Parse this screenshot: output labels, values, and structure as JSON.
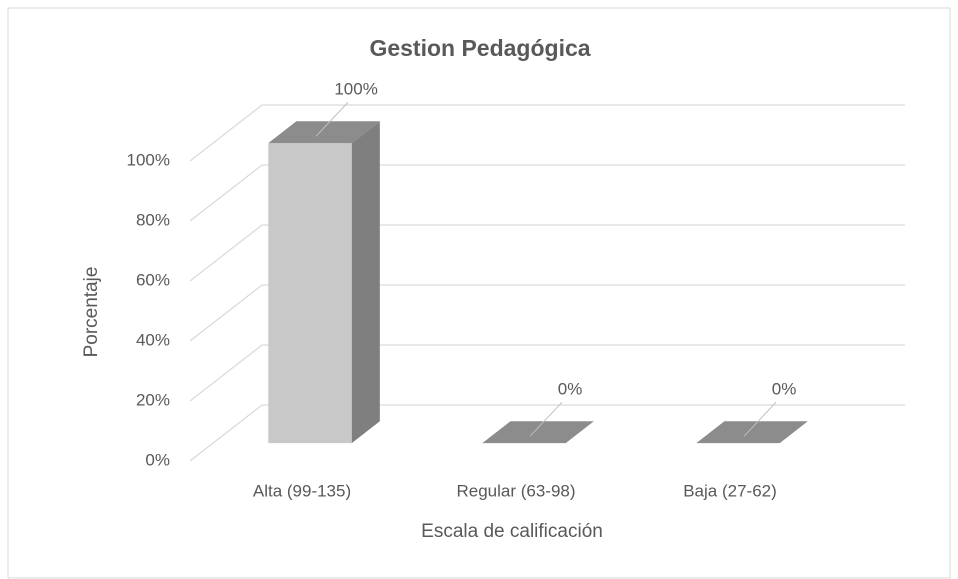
{
  "chart_data": {
    "type": "bar3d",
    "title": "Gestion Pedagógica",
    "x_label": "Escala de calificación",
    "y_label": "Porcentaje",
    "categories": [
      "Alta (99-135)",
      "Regular (63-98)",
      "Baja (27-62)"
    ],
    "values": [
      100,
      0,
      0
    ],
    "value_labels": [
      "100%",
      "0%",
      "0%"
    ],
    "color": "#c8c8c8",
    "ylim": [
      0,
      100
    ],
    "yticks": [
      {
        "value": 0,
        "label": "0%"
      },
      {
        "value": 20,
        "label": "20%"
      },
      {
        "value": 40,
        "label": "40%"
      },
      {
        "value": 60,
        "label": "60%"
      },
      {
        "value": 80,
        "label": "80%"
      },
      {
        "value": 100,
        "label": "100%"
      }
    ],
    "grid": true
  }
}
